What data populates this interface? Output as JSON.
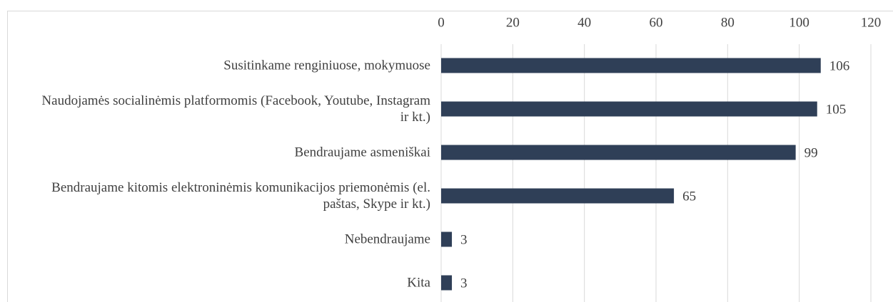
{
  "chart_data": {
    "type": "bar",
    "orientation": "horizontal",
    "categories": [
      "Susitinkame renginiuose, mokymuose",
      "Naudojamės socialinėmis platformomis (Facebook, Youtube, Instagram ir kt.)",
      "Bendraujame asmeniškai",
      "Bendraujame kitomis elektroninėmis komunikacijos priemonėmis (el. paštas, Skype ir kt.)",
      "Nebendraujame",
      "Kita"
    ],
    "values": [
      106,
      105,
      99,
      65,
      3,
      3
    ],
    "color": "#2f3f57",
    "xlim": [
      0,
      120
    ],
    "xticks": [
      0,
      20,
      40,
      60,
      80,
      100,
      120
    ],
    "grid": true
  }
}
